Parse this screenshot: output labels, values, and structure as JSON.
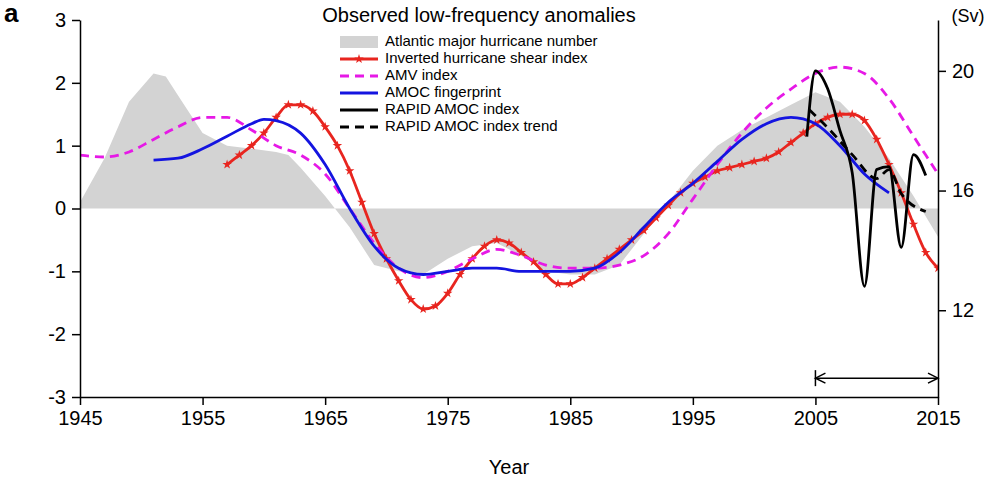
{
  "chart_data": {
    "type": "line",
    "panel_label": "a",
    "title": "Observed low-frequency anomalies",
    "xlabel": "Year",
    "y2label": "(Sv)",
    "xlim": [
      1945,
      2015
    ],
    "xticks": [
      1945,
      1955,
      1965,
      1975,
      1985,
      1995,
      2005,
      2015
    ],
    "ylim": [
      -3,
      3
    ],
    "yticks": [
      -3,
      -2,
      -1,
      0,
      1,
      2,
      3
    ],
    "y2lim": [
      9.1,
      21.7
    ],
    "y2ticks": [
      12,
      16,
      20
    ],
    "legend": "top",
    "series": [
      {
        "name": "Atlantic major hurricane number",
        "type": "area",
        "color": "#d3d3d3",
        "x": [
          1945,
          1947,
          1949,
          1951,
          1952,
          1953,
          1955,
          1957,
          1959,
          1961,
          1962,
          1963,
          1965,
          1967,
          1969,
          1971,
          1973,
          1975,
          1977,
          1979,
          1981,
          1983,
          1985,
          1987,
          1989,
          1991,
          1993,
          1995,
          1997,
          1999,
          2001,
          2003,
          2005,
          2007,
          2009,
          2011,
          2013,
          2015
        ],
        "values": [
          0.1,
          0.8,
          1.7,
          2.15,
          2.1,
          1.8,
          1.2,
          1.0,
          0.95,
          0.9,
          0.85,
          0.65,
          0.2,
          -0.3,
          -0.9,
          -1.0,
          -1.05,
          -0.8,
          -0.6,
          -0.55,
          -0.75,
          -1.0,
          -1.05,
          -1.05,
          -0.9,
          -0.4,
          0.1,
          0.6,
          1.0,
          1.25,
          1.45,
          1.65,
          1.85,
          1.7,
          1.3,
          0.8,
          0.2,
          -0.45
        ]
      },
      {
        "name": "Inverted hurricane shear index",
        "type": "line",
        "color": "#e8251f",
        "marker": "star",
        "x": [
          1957,
          1958,
          1959,
          1960,
          1961,
          1962,
          1963,
          1964,
          1965,
          1966,
          1967,
          1968,
          1969,
          1970,
          1971,
          1972,
          1973,
          1974,
          1975,
          1976,
          1977,
          1978,
          1979,
          1980,
          1981,
          1982,
          1983,
          1984,
          1985,
          1986,
          1987,
          1988,
          1989,
          1990,
          1991,
          1992,
          1993,
          1994,
          1995,
          1996,
          1997,
          1998,
          1999,
          2000,
          2001,
          2002,
          2003,
          2004,
          2005,
          2006,
          2007,
          2008,
          2009,
          2010,
          2011,
          2012,
          2013,
          2014,
          2015
        ],
        "values": [
          0.7,
          0.85,
          1.0,
          1.2,
          1.45,
          1.65,
          1.65,
          1.55,
          1.3,
          1.0,
          0.6,
          0.1,
          -0.4,
          -0.8,
          -1.15,
          -1.45,
          -1.6,
          -1.55,
          -1.35,
          -1.05,
          -0.8,
          -0.6,
          -0.5,
          -0.55,
          -0.7,
          -0.85,
          -1.05,
          -1.2,
          -1.2,
          -1.1,
          -0.95,
          -0.8,
          -0.65,
          -0.5,
          -0.35,
          -0.15,
          0.05,
          0.25,
          0.4,
          0.5,
          0.6,
          0.65,
          0.7,
          0.75,
          0.8,
          0.9,
          1.05,
          1.2,
          1.35,
          1.45,
          1.5,
          1.5,
          1.4,
          1.1,
          0.7,
          0.25,
          -0.25,
          -0.7,
          -0.95
        ]
      },
      {
        "name": "AMV index",
        "type": "line",
        "color": "#e619e6",
        "line_style": "dashed",
        "x": [
          1945,
          1947,
          1949,
          1951,
          1953,
          1955,
          1957,
          1959,
          1961,
          1963,
          1965,
          1967,
          1969,
          1971,
          1973,
          1975,
          1977,
          1979,
          1981,
          1983,
          1985,
          1987,
          1989,
          1991,
          1993,
          1995,
          1997,
          1999,
          2001,
          2003,
          2005,
          2007,
          2009,
          2011,
          2013,
          2015
        ],
        "values": [
          0.85,
          0.82,
          0.9,
          1.1,
          1.3,
          1.45,
          1.45,
          1.25,
          1.0,
          0.85,
          0.55,
          0.0,
          -0.55,
          -0.95,
          -1.1,
          -1.0,
          -0.8,
          -0.65,
          -0.75,
          -0.9,
          -0.95,
          -0.95,
          -0.9,
          -0.75,
          -0.4,
          0.15,
          0.7,
          1.2,
          1.6,
          1.9,
          2.15,
          2.25,
          2.15,
          1.75,
          1.15,
          0.55
        ]
      },
      {
        "name": "AMOC fingerprint",
        "type": "line",
        "color": "#1414e0",
        "x": [
          1951,
          1953,
          1955,
          1957,
          1959,
          1960,
          1961,
          1963,
          1965,
          1967,
          1969,
          1971,
          1973,
          1975,
          1977,
          1979,
          1981,
          1983,
          1985,
          1987,
          1989,
          1991,
          1993,
          1995,
          1997,
          1999,
          2001,
          2003,
          2005,
          2007,
          2009,
          2011
        ],
        "values": [
          0.77,
          0.8,
          0.95,
          1.15,
          1.35,
          1.42,
          1.4,
          1.2,
          0.7,
          0.0,
          -0.6,
          -0.95,
          -1.05,
          -1.0,
          -0.95,
          -0.95,
          -1.0,
          -1.0,
          -1.0,
          -0.95,
          -0.7,
          -0.3,
          0.1,
          0.4,
          0.75,
          1.1,
          1.35,
          1.45,
          1.35,
          1.0,
          0.55,
          0.25
        ]
      },
      {
        "name": "RAPID AMOC index",
        "type": "line",
        "color": "#000000",
        "axis": "y2",
        "x": [
          2004.3,
          2005,
          2006,
          2007,
          2008,
          2009,
          2010,
          2011,
          2012,
          2013,
          2014
        ],
        "values": [
          17.8,
          20.0,
          19.4,
          18.0,
          16.6,
          12.8,
          16.7,
          16.8,
          14.1,
          17.2,
          16.5
        ]
      },
      {
        "name": "RAPID AMOC index trend",
        "type": "line",
        "color": "#000000",
        "axis": "y2",
        "line_style": "dashed",
        "x": [
          2004.5,
          2006,
          2008,
          2010,
          2011,
          2012,
          2014
        ],
        "values": [
          18.7,
          18.1,
          17.2,
          16.4,
          16.7,
          15.9,
          15.3
        ]
      }
    ],
    "annotations": [
      {
        "type": "arrow",
        "x": [
          2005,
          2015
        ],
        "y": -2.7
      }
    ]
  }
}
